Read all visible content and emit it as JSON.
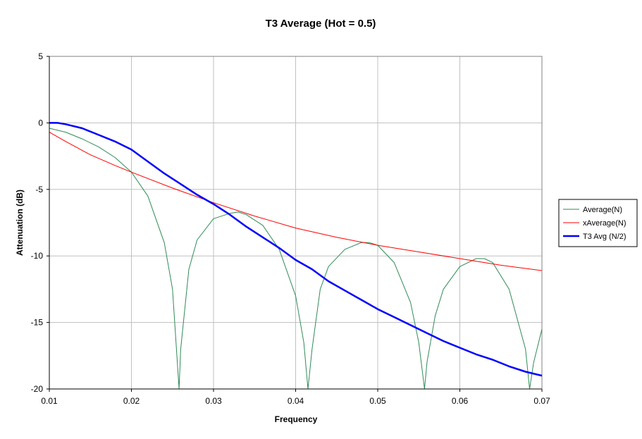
{
  "chart_data": {
    "type": "line",
    "title": "T3 Average (Hot = 0.5)",
    "xlabel": "Frequency",
    "ylabel": "Attenuation (dB)",
    "xlim": [
      0.01,
      0.07
    ],
    "ylim": [
      -20,
      5
    ],
    "x_ticks": [
      "0.01",
      "0.02",
      "0.03",
      "0.04",
      "0.05",
      "0.06",
      "0.07"
    ],
    "y_ticks": [
      "5",
      "0",
      "-5",
      "-10",
      "-15",
      "-20"
    ],
    "grid": true,
    "legend_position": "right",
    "series": [
      {
        "name": "Average(N)",
        "color": "#2e8b57",
        "x": [
          0.01,
          0.012,
          0.014,
          0.016,
          0.018,
          0.02,
          0.022,
          0.024,
          0.025,
          0.0258,
          0.026,
          0.027,
          0.028,
          0.03,
          0.032,
          0.033,
          0.034,
          0.036,
          0.038,
          0.04,
          0.041,
          0.0415,
          0.042,
          0.043,
          0.044,
          0.046,
          0.048,
          0.049,
          0.05,
          0.052,
          0.054,
          0.055,
          0.0557,
          0.056,
          0.057,
          0.058,
          0.06,
          0.062,
          0.063,
          0.064,
          0.066,
          0.068,
          0.0685,
          0.069,
          0.07
        ],
        "y": [
          -0.4,
          -0.7,
          -1.2,
          -1.8,
          -2.6,
          -3.7,
          -5.5,
          -9.0,
          -12.5,
          -20,
          -17.0,
          -11.0,
          -8.8,
          -7.2,
          -6.8,
          -6.7,
          -6.9,
          -7.7,
          -9.5,
          -13.0,
          -16.5,
          -20,
          -17.0,
          -12.5,
          -10.8,
          -9.5,
          -9.0,
          -9.0,
          -9.2,
          -10.5,
          -13.5,
          -16.5,
          -20,
          -18.0,
          -14.5,
          -12.5,
          -10.8,
          -10.2,
          -10.2,
          -10.5,
          -12.5,
          -17.0,
          -20,
          -18.0,
          -15.5
        ]
      },
      {
        "name": "xAverage(N)",
        "color": "#ff0000",
        "x": [
          0.01,
          0.012,
          0.015,
          0.018,
          0.02,
          0.025,
          0.03,
          0.035,
          0.04,
          0.045,
          0.05,
          0.055,
          0.06,
          0.065,
          0.07
        ],
        "y": [
          -0.7,
          -1.4,
          -2.4,
          -3.2,
          -3.7,
          -4.9,
          -6.0,
          -7.0,
          -7.9,
          -8.6,
          -9.2,
          -9.7,
          -10.2,
          -10.7,
          -11.1
        ]
      },
      {
        "name": "T3 Avg (N/2)",
        "color": "#0000ff",
        "x": [
          0.01,
          0.011,
          0.012,
          0.014,
          0.016,
          0.018,
          0.02,
          0.022,
          0.024,
          0.026,
          0.028,
          0.03,
          0.032,
          0.034,
          0.036,
          0.038,
          0.04,
          0.042,
          0.044,
          0.046,
          0.048,
          0.05,
          0.052,
          0.054,
          0.056,
          0.058,
          0.06,
          0.062,
          0.064,
          0.066,
          0.068,
          0.07
        ],
        "y": [
          0.0,
          0.0,
          -0.1,
          -0.4,
          -0.9,
          -1.4,
          -2.0,
          -2.9,
          -3.8,
          -4.6,
          -5.4,
          -6.1,
          -6.9,
          -7.8,
          -8.6,
          -9.4,
          -10.3,
          -11.0,
          -11.9,
          -12.6,
          -13.3,
          -14.0,
          -14.6,
          -15.2,
          -15.8,
          -16.4,
          -16.9,
          -17.4,
          -17.8,
          -18.3,
          -18.7,
          -19.0
        ]
      }
    ]
  }
}
